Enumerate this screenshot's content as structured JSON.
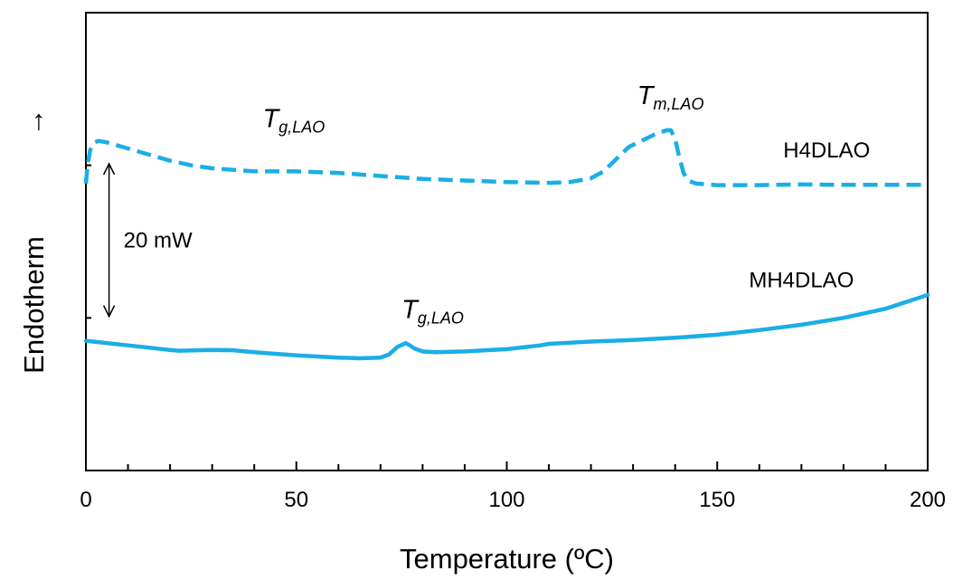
{
  "chart_data": {
    "type": "line",
    "xlabel": "Temperature (ºC)",
    "ylabel": "Endotherm",
    "ylabel_arrow": "→",
    "xlim": [
      0,
      200
    ],
    "x_ticks": [
      0,
      50,
      100,
      150,
      200
    ],
    "x_tick_labels": [
      "0",
      "50",
      "100",
      "150",
      "200"
    ],
    "x_minor_step": 10,
    "ylim": [
      0,
      30
    ],
    "y_ticks": [
      0,
      10,
      20,
      30
    ],
    "grid": false,
    "color": "#1aaee6",
    "series": [
      {
        "name": "H4DLAO",
        "style": "dashed",
        "points": [
          [
            0,
            18.8
          ],
          [
            0.4,
            20.0
          ],
          [
            1,
            21.0
          ],
          [
            2,
            21.5
          ],
          [
            3,
            21.6
          ],
          [
            5,
            21.5
          ],
          [
            10,
            21.1
          ],
          [
            15,
            20.7
          ],
          [
            20,
            20.3
          ],
          [
            25,
            20.0
          ],
          [
            30,
            19.8
          ],
          [
            40,
            19.6
          ],
          [
            50,
            19.6
          ],
          [
            60,
            19.5
          ],
          [
            70,
            19.3
          ],
          [
            80,
            19.1
          ],
          [
            90,
            19.0
          ],
          [
            100,
            18.9
          ],
          [
            110,
            18.85
          ],
          [
            115,
            18.9
          ],
          [
            120,
            19.15
          ],
          [
            123,
            19.6
          ],
          [
            126,
            20.4
          ],
          [
            129,
            21.2
          ],
          [
            132,
            21.6
          ],
          [
            135,
            22.0
          ],
          [
            138,
            22.3
          ],
          [
            139,
            22.3
          ],
          [
            140,
            21.7
          ],
          [
            141,
            20.5
          ],
          [
            142,
            19.5
          ],
          [
            143,
            19.0
          ],
          [
            145,
            18.8
          ],
          [
            150,
            18.7
          ],
          [
            160,
            18.7
          ],
          [
            170,
            18.75
          ],
          [
            180,
            18.72
          ],
          [
            190,
            18.72
          ],
          [
            200,
            18.72
          ]
        ]
      },
      {
        "name": "MH4DLAO",
        "style": "solid",
        "points": [
          [
            0,
            8.5
          ],
          [
            10,
            8.2
          ],
          [
            20,
            7.9
          ],
          [
            22,
            7.85
          ],
          [
            30,
            7.9
          ],
          [
            35,
            7.88
          ],
          [
            40,
            7.75
          ],
          [
            50,
            7.55
          ],
          [
            60,
            7.4
          ],
          [
            65,
            7.35
          ],
          [
            70,
            7.4
          ],
          [
            72,
            7.6
          ],
          [
            74,
            8.1
          ],
          [
            76,
            8.35
          ],
          [
            77,
            8.2
          ],
          [
            78,
            8.0
          ],
          [
            80,
            7.8
          ],
          [
            83,
            7.75
          ],
          [
            90,
            7.8
          ],
          [
            100,
            7.95
          ],
          [
            108,
            8.2
          ],
          [
            110,
            8.3
          ],
          [
            120,
            8.45
          ],
          [
            130,
            8.55
          ],
          [
            140,
            8.7
          ],
          [
            150,
            8.9
          ],
          [
            160,
            9.2
          ],
          [
            170,
            9.55
          ],
          [
            180,
            10.0
          ],
          [
            190,
            10.6
          ],
          [
            200,
            11.5
          ]
        ]
      }
    ],
    "annotations": {
      "scale_bar": {
        "label": "20 mW",
        "x": 5.5,
        "y_top": 20.1,
        "y_bottom": 10.1
      },
      "tg_top": {
        "symbol": "T",
        "subscript": "g,LAO",
        "x": 42,
        "y": 22.5
      },
      "tm_top": {
        "symbol": "T",
        "subscript": "m,LAO",
        "x": 131,
        "y": 24.0
      },
      "tg_bottom": {
        "symbol": "T",
        "subscript": "g,LAO",
        "x": 75,
        "y": 10.0
      },
      "h4dlao_label": {
        "text": "H4DLAO",
        "x": 176,
        "y": 20.5
      },
      "mh4dlao_label": {
        "text": "MH4DLAO",
        "x": 170,
        "y": 12.0
      }
    }
  }
}
